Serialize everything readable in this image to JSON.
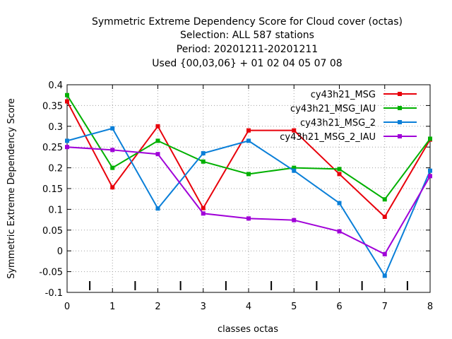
{
  "chart_data": {
    "type": "line",
    "title_lines": [
      "Symmetric Extreme Dependency Score  for Cloud cover (octas)",
      "Selection: ALL     587 stations",
      "Period: 20201211-20201211",
      "Used {00,03,06} + 01 02 04 05 07 08"
    ],
    "xlabel": "classes octas",
    "ylabel": "Symmetric Extreme Dependency Score",
    "x": [
      0,
      1,
      2,
      3,
      4,
      5,
      6,
      7,
      8
    ],
    "xlim": [
      0,
      8
    ],
    "ylim": [
      -0.1,
      0.4
    ],
    "x_ticks": [
      "0",
      "1",
      "2",
      "3",
      "4",
      "5",
      "6",
      "7",
      "8"
    ],
    "y_ticks": [
      "0.4",
      "0.35",
      "0.3",
      "0.25",
      "0.2",
      "0.15",
      "0.1",
      "0.05",
      "0",
      "-0.05",
      "-0.1"
    ],
    "grid": true,
    "legend_position": "top-right",
    "series": [
      {
        "name": "cy43h21_MSG",
        "color": "#e8000b",
        "values": [
          0.36,
          0.153,
          0.3,
          0.103,
          0.29,
          0.29,
          0.185,
          0.082,
          0.268
        ]
      },
      {
        "name": "cy43h21_MSG_IAU",
        "color": "#00b000",
        "values": [
          0.375,
          0.2,
          0.265,
          0.215,
          0.185,
          0.2,
          0.197,
          0.124,
          0.27
        ]
      },
      {
        "name": "cy43h21_MSG_2",
        "color": "#0a7fd8",
        "values": [
          0.265,
          0.295,
          0.102,
          0.235,
          0.265,
          0.193,
          0.115,
          -0.06,
          0.193
        ]
      },
      {
        "name": "cy43h21_MSG_2_IAU",
        "color": "#a000d8",
        "values": [
          0.25,
          0.243,
          0.233,
          0.09,
          0.078,
          0.074,
          0.047,
          -0.008,
          0.18
        ]
      }
    ]
  }
}
